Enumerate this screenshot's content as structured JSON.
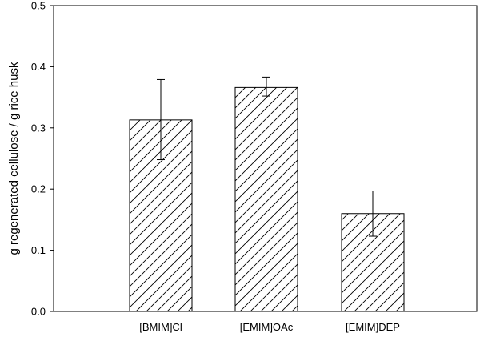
{
  "chart_data": {
    "type": "bar",
    "title": "",
    "xlabel": "",
    "ylabel": "g regenerated cellulose / g rice husk",
    "categories": [
      "[BMIM]Cl",
      "[EMIM]OAc",
      "[EMIM]DEP"
    ],
    "values": [
      0.313,
      0.366,
      0.16
    ],
    "error_bars": [
      {
        "low": 0.248,
        "high": 0.379
      },
      {
        "low": 0.352,
        "high": 0.383
      },
      {
        "low": 0.123,
        "high": 0.197
      }
    ],
    "ylim": [
      0.0,
      0.5
    ],
    "yticks": [
      0.0,
      0.1,
      0.2,
      0.3,
      0.4,
      0.5
    ],
    "ytick_labels": [
      "0.0",
      "0.1",
      "0.2",
      "0.3",
      "0.4",
      "0.5"
    ],
    "bar_fill": "diagonal-hatch",
    "grid": false,
    "legend": "none",
    "colors": {
      "line": "#000000",
      "bar_fill": "#ffffff",
      "hatch": "#000000"
    }
  }
}
